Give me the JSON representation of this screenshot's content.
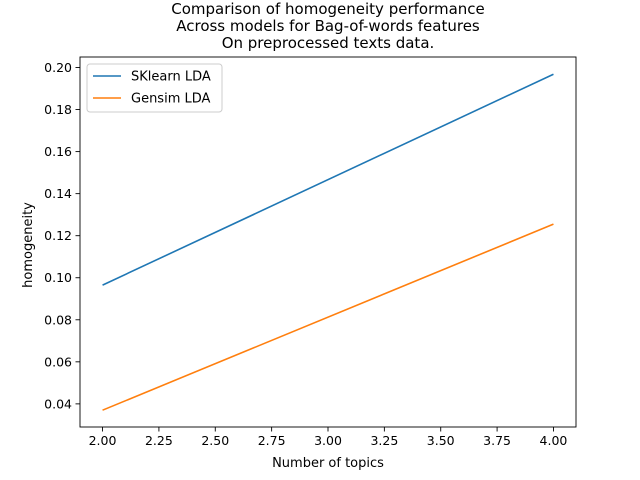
{
  "chart_data": {
    "type": "line",
    "title_lines": [
      "Comparison of homogeneity performance",
      "Across models for Bag-of-words features",
      "On preprocessed texts data."
    ],
    "xlabel": "Number of topics",
    "ylabel": "homogeneity",
    "xlim": [
      1.9,
      4.1
    ],
    "ylim": [
      0.029,
      0.205
    ],
    "xticks": [
      2.0,
      2.25,
      2.5,
      2.75,
      3.0,
      3.25,
      3.5,
      3.75,
      4.0
    ],
    "xtick_labels": [
      "2.00",
      "2.25",
      "2.50",
      "2.75",
      "3.00",
      "3.25",
      "3.50",
      "3.75",
      "4.00"
    ],
    "yticks": [
      0.04,
      0.06,
      0.08,
      0.1,
      0.12,
      0.14,
      0.16,
      0.18,
      0.2
    ],
    "ytick_labels": [
      "0.04",
      "0.06",
      "0.08",
      "0.10",
      "0.12",
      "0.14",
      "0.16",
      "0.18",
      "0.20"
    ],
    "grid": false,
    "legend_position": "top-left",
    "series": [
      {
        "name": "SKlearn LDA",
        "color": "#1f77b4",
        "x": [
          2.0,
          4.0
        ],
        "y": [
          0.0965,
          0.1968
        ]
      },
      {
        "name": "Gensim LDA",
        "color": "#ff7f0e",
        "x": [
          2.0,
          4.0
        ],
        "y": [
          0.037,
          0.1255
        ]
      }
    ]
  }
}
